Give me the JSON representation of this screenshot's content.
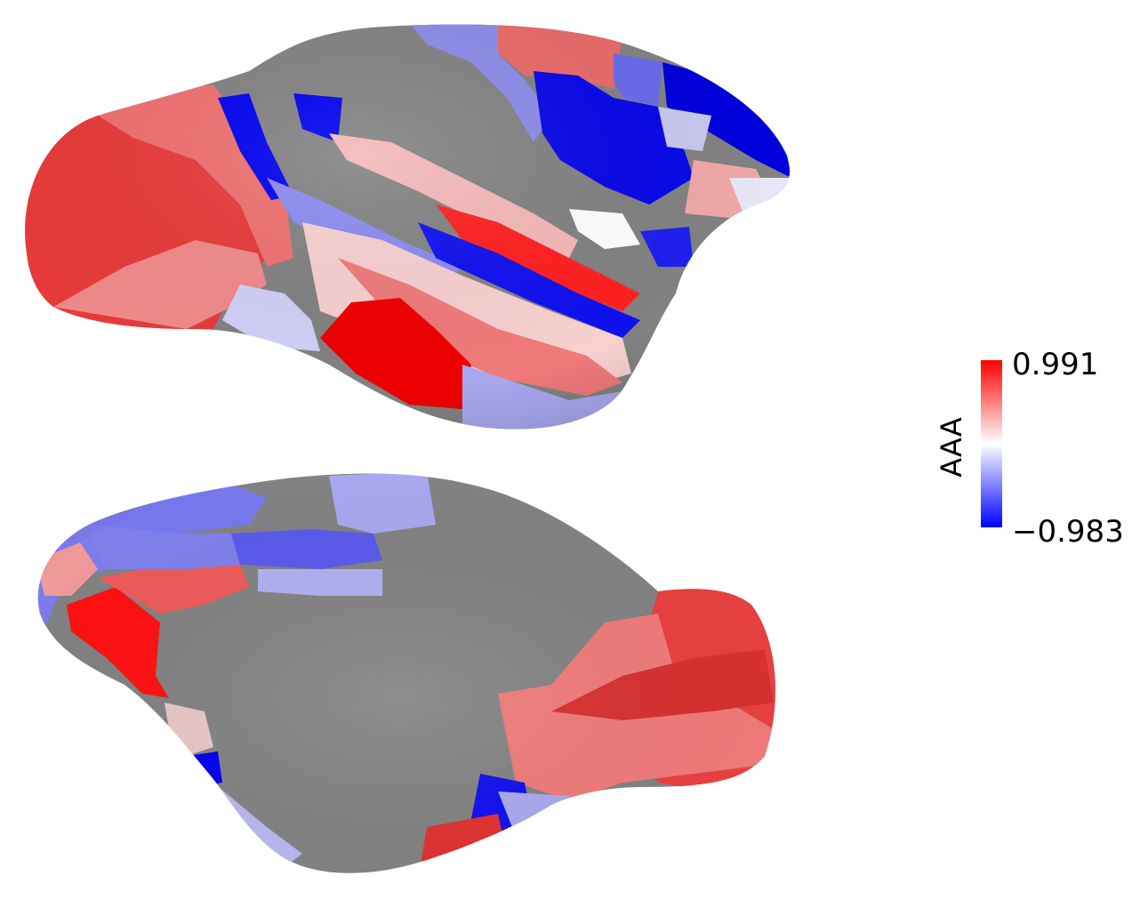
{
  "colorbar": {
    "label": "AAA",
    "max_label": "0.991",
    "min_label": "−0.983",
    "max": 0.991,
    "min": -0.983,
    "colormap": [
      "#0000ff",
      "#ffffff",
      "#ff0000"
    ]
  },
  "colors": {
    "gray": "#828282",
    "red": "#ff0000",
    "darkred": "#dc2020",
    "red2": "#f04848",
    "pink": "#f08080",
    "lightpink": "#f5b5b5",
    "paleblue": "#c8c8f5",
    "lightblue": "#a0a0f0",
    "mediumblue": "#7070f0",
    "blue": "#0000f0"
  }
}
